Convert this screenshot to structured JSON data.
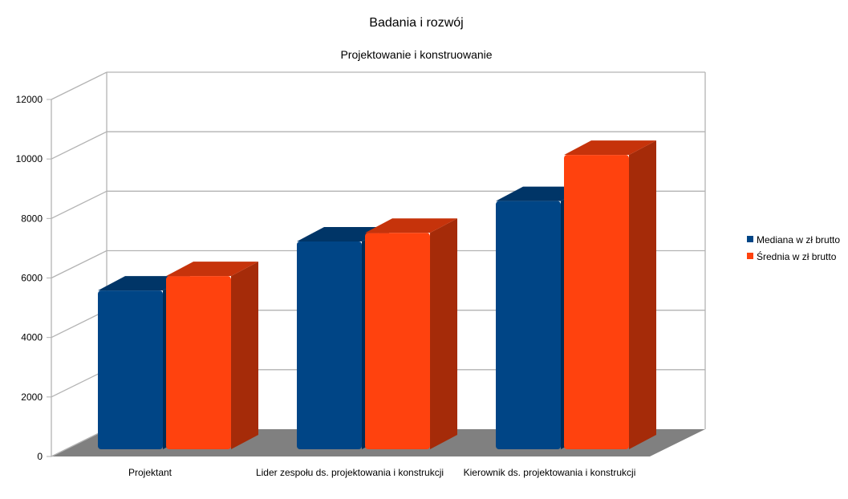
{
  "chart_data": {
    "type": "bar",
    "title": "Badania i rozwój",
    "subtitle": "Projektowanie i konstruowanie",
    "categories": [
      "Projektant",
      "Lider zespołu ds. projektowania i konstrukcji",
      "Kierownik ds. projektowania i konstrukcji"
    ],
    "series": [
      {
        "name": "Mediana w zł brutto",
        "values": [
          5500,
          7200,
          8600
        ],
        "color": "#004586",
        "top_color": "#003567",
        "side_color": "#002d57"
      },
      {
        "name": "Średnia w zł brutto",
        "values": [
          6000,
          7500,
          10200
        ],
        "color": "#ff420e",
        "top_color": "#c6330b",
        "side_color": "#a52b09"
      }
    ],
    "y_ticks": [
      "0",
      "2000",
      "4000",
      "6000",
      "8000",
      "10000",
      "12000"
    ],
    "ylim": [
      0,
      12000
    ],
    "grid": true,
    "legend_position": "right",
    "colors": {
      "floor": "#808080",
      "grid": "#b3b3b3",
      "wall": "#ffffff"
    }
  }
}
